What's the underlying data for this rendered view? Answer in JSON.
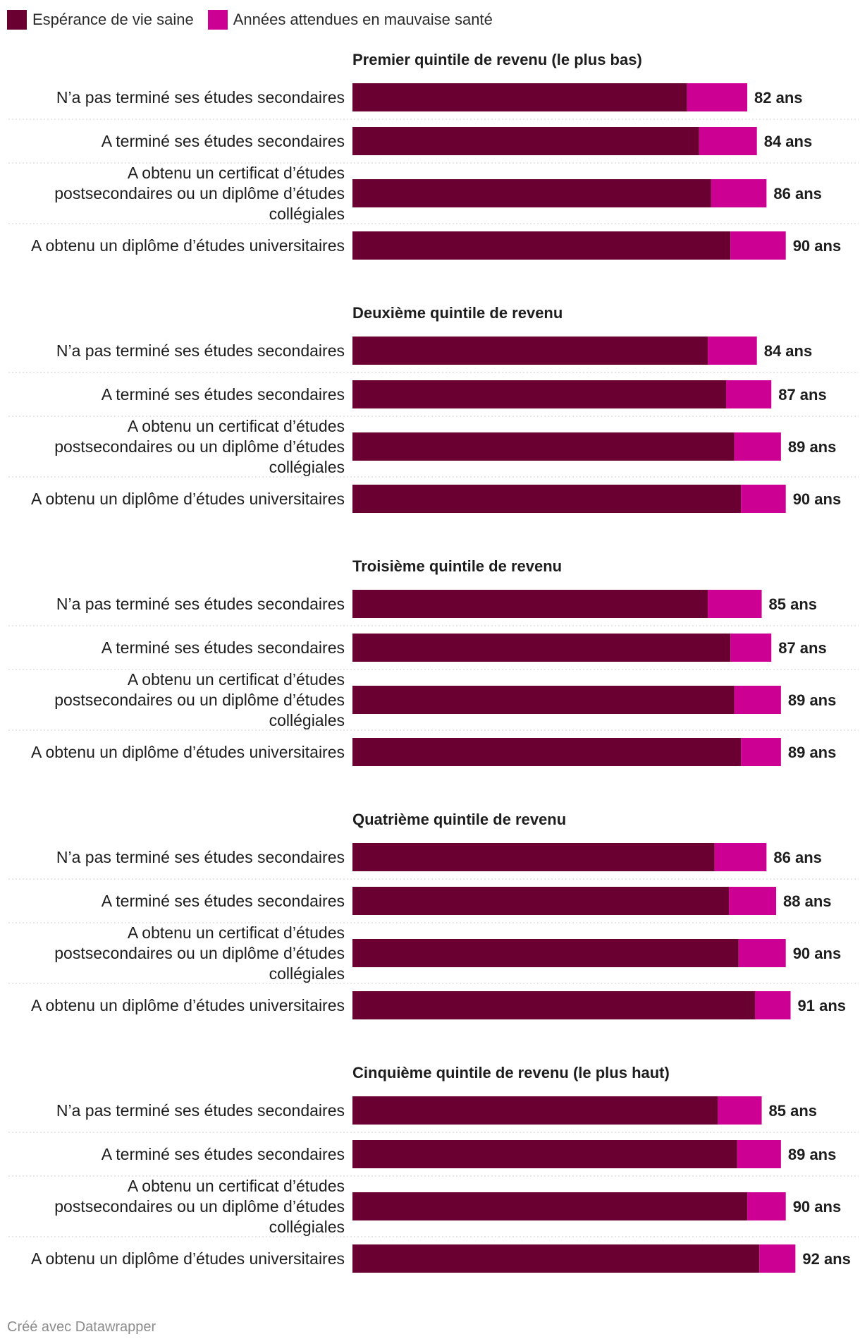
{
  "legend": {
    "healthy_label": "Espérance de vie saine",
    "unhealthy_label": "Années attendues en mauvaise santé"
  },
  "colors": {
    "healthy": "#690031",
    "unhealthy": "#cc0093"
  },
  "credit": "Créé avec Datawrapper",
  "chart_data": {
    "type": "bar",
    "stacked": true,
    "orientation": "horizontal",
    "value_unit": "ans",
    "series": [
      {
        "name": "Espérance de vie saine"
      },
      {
        "name": "Années attendues en mauvaise santé"
      }
    ],
    "groups": [
      {
        "title": "Premier quintile de revenu (le plus bas)",
        "rows": [
          {
            "label": "N’a pas terminé ses études secondaires",
            "healthy": 69.5,
            "unhealthy": 12.5,
            "total_label": "82 ans"
          },
          {
            "label": "A terminé ses études secondaires",
            "healthy": 72.0,
            "unhealthy": 12.0,
            "total_label": "84 ans"
          },
          {
            "label": "A obtenu un certificat d’études postsecondaires ou un diplôme d’études collégiales",
            "healthy": 74.5,
            "unhealthy": 11.5,
            "total_label": "86 ans"
          },
          {
            "label": "A obtenu un diplôme d’études universitaires",
            "healthy": 78.5,
            "unhealthy": 11.5,
            "total_label": "90 ans"
          }
        ]
      },
      {
        "title": "Deuxième quintile de revenu",
        "rows": [
          {
            "label": "N’a pas terminé ses études secondaires",
            "healthy": 73.8,
            "unhealthy": 10.2,
            "total_label": "84 ans"
          },
          {
            "label": "A terminé ses études secondaires",
            "healthy": 77.6,
            "unhealthy": 9.4,
            "total_label": "87 ans"
          },
          {
            "label": "A obtenu un certificat d’études postsecondaires ou un diplôme d’études collégiales",
            "healthy": 79.3,
            "unhealthy": 9.7,
            "total_label": "89 ans"
          },
          {
            "label": "A obtenu un diplôme d’études universitaires",
            "healthy": 80.7,
            "unhealthy": 9.3,
            "total_label": "90 ans"
          }
        ]
      },
      {
        "title": "Troisième quintile de revenu",
        "rows": [
          {
            "label": "N’a pas terminé ses études secondaires",
            "healthy": 73.8,
            "unhealthy": 11.2,
            "total_label": "85 ans"
          },
          {
            "label": "A terminé ses études secondaires",
            "healthy": 78.5,
            "unhealthy": 8.5,
            "total_label": "87 ans"
          },
          {
            "label": "A obtenu un certificat d’études postsecondaires ou un diplôme d’études collégiales",
            "healthy": 79.3,
            "unhealthy": 9.7,
            "total_label": "89 ans"
          },
          {
            "label": "A obtenu un diplôme d’études universitaires",
            "healthy": 80.7,
            "unhealthy": 8.3,
            "total_label": "89 ans"
          }
        ]
      },
      {
        "title": "Quatrième quintile de revenu",
        "rows": [
          {
            "label": "N’a pas terminé ses études secondaires",
            "healthy": 75.2,
            "unhealthy": 10.8,
            "total_label": "86 ans"
          },
          {
            "label": "A terminé ses études secondaires",
            "healthy": 78.2,
            "unhealthy": 9.8,
            "total_label": "88 ans"
          },
          {
            "label": "A obtenu un certificat d’études postsecondaires ou un diplôme d’études collégiales",
            "healthy": 80.2,
            "unhealthy": 9.8,
            "total_label": "90 ans"
          },
          {
            "label": "A obtenu un diplôme d’études universitaires",
            "healthy": 83.6,
            "unhealthy": 7.4,
            "total_label": "91 ans"
          }
        ]
      },
      {
        "title": "Cinquième quintile de revenu (le plus haut)",
        "rows": [
          {
            "label": "N’a pas terminé ses études secondaires",
            "healthy": 75.9,
            "unhealthy": 9.1,
            "total_label": "85 ans"
          },
          {
            "label": "A terminé ses études secondaires",
            "healthy": 79.9,
            "unhealthy": 9.1,
            "total_label": "89 ans"
          },
          {
            "label": "A obtenu un certificat d’études postsecondaires ou un diplôme d’études collégiales",
            "healthy": 82.0,
            "unhealthy": 8.0,
            "total_label": "90 ans"
          },
          {
            "label": "A obtenu un diplôme d’études universitaires",
            "healthy": 84.5,
            "unhealthy": 7.5,
            "total_label": "92 ans"
          }
        ]
      }
    ]
  }
}
